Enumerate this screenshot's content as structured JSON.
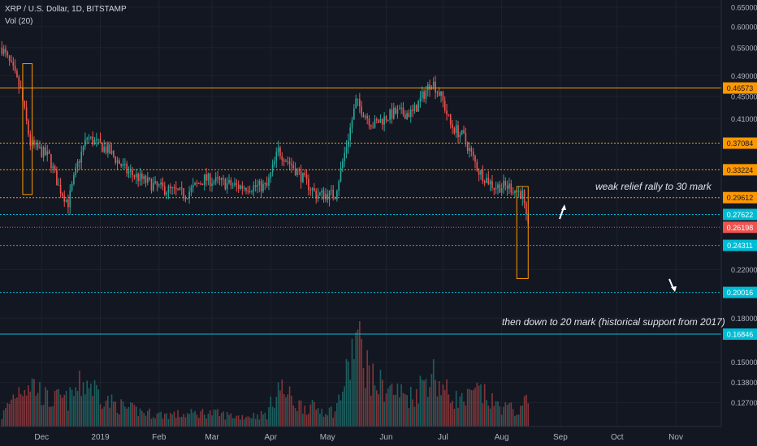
{
  "header": {
    "symbol_line": "XRP / U.S. Dollar, 1D, BITSTAMP",
    "volume_label": "Vol (20)"
  },
  "annotations": {
    "relief": "weak relief rally to 30 mark",
    "down": "then down to 20 mark (historical support from 2017)"
  },
  "chart_data": {
    "type": "candlestick",
    "title": "XRP / U.S. Dollar, 1D, BITSTAMP",
    "volume_indicator": "Vol (20)",
    "colors": {
      "up": "#26a69a",
      "down": "#ef5350",
      "orange_level": "#ff9800",
      "blue_level": "#00bcd4",
      "background": "#131722"
    },
    "price_axis": {
      "ticks": [
        "0.65000",
        "0.60000",
        "0.55000",
        "0.49000",
        "0.45000",
        "0.41000",
        "0.22000",
        "0.18000",
        "0.15000",
        "0.13800",
        "0.12700"
      ],
      "ylim": [
        0.115,
        0.67
      ],
      "scale": "log"
    },
    "time_axis": {
      "ticks": [
        {
          "label": "Dec",
          "date": "2018-12-01"
        },
        {
          "label": "2019",
          "date": "2019-01-01"
        },
        {
          "label": "Feb",
          "date": "2019-02-01"
        },
        {
          "label": "Mar",
          "date": "2019-03-01"
        },
        {
          "label": "Apr",
          "date": "2019-04-01"
        },
        {
          "label": "May",
          "date": "2019-05-01"
        },
        {
          "label": "Jun",
          "date": "2019-06-01"
        },
        {
          "label": "Jul",
          "date": "2019-07-01"
        },
        {
          "label": "Aug",
          "date": "2019-08-01"
        },
        {
          "label": "Sep",
          "date": "2019-09-01"
        },
        {
          "label": "Oct",
          "date": "2019-10-01"
        },
        {
          "label": "Nov",
          "date": "2019-11-01"
        }
      ],
      "range": [
        "2018-11-09",
        "2019-11-25"
      ]
    },
    "levels": [
      {
        "value": "0.46573",
        "style": "solid",
        "color": "orange"
      },
      {
        "value": "0.37084",
        "style": "dotted",
        "color": "orange"
      },
      {
        "value": "0.33224",
        "style": "dotted",
        "color": "orange"
      },
      {
        "value": "0.29612",
        "style": "dotted",
        "color": "orange"
      },
      {
        "value": "0.27622",
        "style": "dotted",
        "color": "blue"
      },
      {
        "value": "0.24311",
        "style": "dotted",
        "color": "blue"
      },
      {
        "value": "0.20016",
        "style": "dotted",
        "color": "blue"
      },
      {
        "value": "0.16846",
        "style": "solid",
        "color": "blue"
      }
    ],
    "current_price": "0.26198",
    "anchors": [
      [
        "2018-11-10",
        0.55,
        10
      ],
      [
        "2018-11-16",
        0.5,
        30
      ],
      [
        "2018-11-20",
        0.46,
        40
      ],
      [
        "2018-11-25",
        0.37,
        45
      ],
      [
        "2018-12-05",
        0.35,
        25
      ],
      [
        "2018-12-10",
        0.31,
        28
      ],
      [
        "2018-12-15",
        0.29,
        26
      ],
      [
        "2018-12-20",
        0.34,
        38
      ],
      [
        "2018-12-25",
        0.38,
        45
      ],
      [
        "2019-01-05",
        0.36,
        25
      ],
      [
        "2019-01-15",
        0.33,
        18
      ],
      [
        "2019-01-30",
        0.31,
        12
      ],
      [
        "2019-02-15",
        0.3,
        12
      ],
      [
        "2019-02-25",
        0.32,
        14
      ],
      [
        "2019-03-15",
        0.31,
        10
      ],
      [
        "2019-03-30",
        0.31,
        12
      ],
      [
        "2019-04-05",
        0.36,
        40
      ],
      [
        "2019-04-15",
        0.33,
        22
      ],
      [
        "2019-04-25",
        0.3,
        18
      ],
      [
        "2019-05-05",
        0.3,
        15
      ],
      [
        "2019-05-12",
        0.38,
        55
      ],
      [
        "2019-05-16",
        0.44,
        90
      ],
      [
        "2019-05-25",
        0.4,
        45
      ],
      [
        "2019-06-05",
        0.42,
        35
      ],
      [
        "2019-06-15",
        0.42,
        30
      ],
      [
        "2019-06-25",
        0.48,
        55
      ],
      [
        "2019-06-30",
        0.45,
        40
      ],
      [
        "2019-07-05",
        0.4,
        30
      ],
      [
        "2019-07-12",
        0.38,
        25
      ],
      [
        "2019-07-20",
        0.33,
        35
      ],
      [
        "2019-07-28",
        0.31,
        22
      ],
      [
        "2019-08-05",
        0.31,
        18
      ],
      [
        "2019-08-12",
        0.3,
        15
      ],
      [
        "2019-08-14",
        0.27,
        45
      ],
      [
        "2019-08-15",
        0.26,
        38
      ]
    ]
  }
}
